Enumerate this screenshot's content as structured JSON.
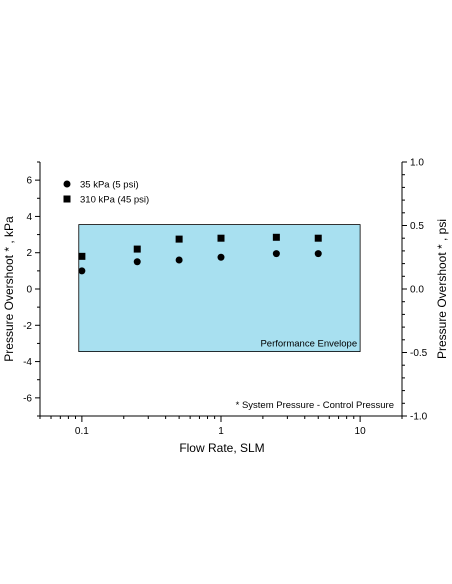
{
  "chart_data": {
    "type": "scatter",
    "xlabel": "Flow Rate, SLM",
    "ylabel": "Pressure Overshoot * , kPa",
    "y2label": "Pressure Overshoot * , psi",
    "x_scale": "log",
    "xlim": [
      0.05,
      20
    ],
    "ylim": [
      -7,
      7
    ],
    "y2lim": [
      -1.0,
      1.0
    ],
    "x_ticks": [
      {
        "value": 0.1,
        "label": "0.1"
      },
      {
        "value": 1,
        "label": "1"
      },
      {
        "value": 10,
        "label": "10"
      }
    ],
    "y_ticks": [
      {
        "value": 6,
        "label": "6"
      },
      {
        "value": 4,
        "label": "4"
      },
      {
        "value": 2,
        "label": "2"
      },
      {
        "value": 0,
        "label": "0"
      },
      {
        "value": -2,
        "label": "-2"
      },
      {
        "value": -4,
        "label": "-4"
      },
      {
        "value": -6,
        "label": "-6"
      }
    ],
    "y2_ticks": [
      {
        "value": 1.0,
        "label": "1.0"
      },
      {
        "value": 0.5,
        "label": "0.5"
      },
      {
        "value": 0.0,
        "label": "0.0"
      },
      {
        "value": -0.5,
        "label": "-0.5"
      },
      {
        "value": -1.0,
        "label": "-1.0"
      }
    ],
    "envelope": {
      "label": "Performance Envelope",
      "x": [
        0.095,
        10
      ],
      "y": [
        -3.45,
        3.55
      ],
      "color": "#a8e0f0"
    },
    "series": [
      {
        "name": "35 kPa (5 psi)",
        "marker": "circle",
        "x": [
          0.1,
          0.25,
          0.5,
          1,
          2.5,
          5
        ],
        "y": [
          1.0,
          1.5,
          1.6,
          1.75,
          1.95,
          1.95
        ]
      },
      {
        "name": "310 kPa (45 psi)",
        "marker": "square",
        "x": [
          0.1,
          0.25,
          0.5,
          1,
          2.5,
          5
        ],
        "y": [
          1.8,
          2.2,
          2.75,
          2.8,
          2.85,
          2.8
        ]
      }
    ],
    "legend_position": "top-left",
    "annotation": "* System Pressure - Control Pressure",
    "grid": false
  }
}
